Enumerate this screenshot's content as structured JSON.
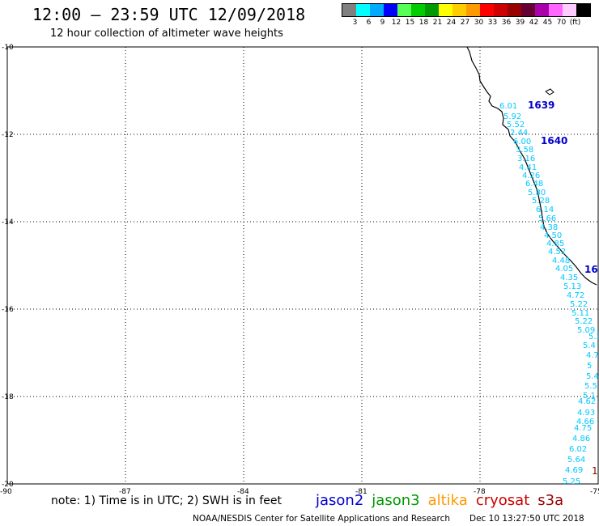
{
  "header": {
    "title": "12:00 – 23:59 UTC 12/09/2018",
    "subtitle": "12 hour collection of altimeter wave heights"
  },
  "legend": {
    "colors": [
      "#808080",
      "#00ffff",
      "#00aaff",
      "#0000ff",
      "#55ff55",
      "#00cc00",
      "#009900",
      "#ffff00",
      "#ffcc00",
      "#ff9900",
      "#ff0000",
      "#cc0000",
      "#990000",
      "#660033",
      "#aa00aa",
      "#ff66ff",
      "#ffccff",
      "#000000"
    ],
    "labels": [
      "3",
      "6",
      "9",
      "12",
      "15",
      "18",
      "21",
      "24",
      "27",
      "30",
      "33",
      "36",
      "39",
      "42",
      "45",
      "70",
      "(ft)"
    ]
  },
  "axes": {
    "lon_ticks": [
      "-90",
      "-87",
      "-84",
      "-81",
      "-78",
      "-75"
    ],
    "lat_ticks": [
      "-10",
      "-12",
      "-14",
      "-16",
      "-18",
      "-20"
    ]
  },
  "pass_ids": [
    "1639",
    "1640",
    "16"
  ],
  "observations": [
    "6.01",
    "5.92",
    "5.52",
    "2.44",
    "6.00",
    "3.58",
    "3.16",
    "4.41",
    "4.26",
    "6.48",
    "5.80",
    "5.28",
    "6.14",
    "5.66",
    "4.38",
    "4.50",
    "4.85",
    "4.52",
    "4.48",
    "4.05",
    "4.35",
    "5.13",
    "4.72",
    "5.22",
    "5.11",
    "5.22",
    "5.09",
    "5.30",
    "5.4",
    "4.7",
    "5",
    "5.4",
    "5.5",
    "5.1",
    "4.62",
    "4.93",
    "4.66",
    "4.75",
    "4.86",
    "6.02",
    "5.64",
    "4.69",
    "5.25"
  ],
  "footer": {
    "note": "note: 1) Time is in UTC; 2) SWH is in feet",
    "satellites": [
      {
        "name": "jason2",
        "color": "#0000cc"
      },
      {
        "name": "jason3",
        "color": "#009900"
      },
      {
        "name": "altika",
        "color": "#ff9900"
      },
      {
        "name": "cryosat",
        "color": "#cc0000"
      },
      {
        "name": "s3a",
        "color": "#990000"
      }
    ],
    "credit": "NOAA/NESDIS Center for Satellite Applications and Research",
    "timestamp": "Dec 10 13:27:50 UTC 2018"
  },
  "extra_label": "1"
}
